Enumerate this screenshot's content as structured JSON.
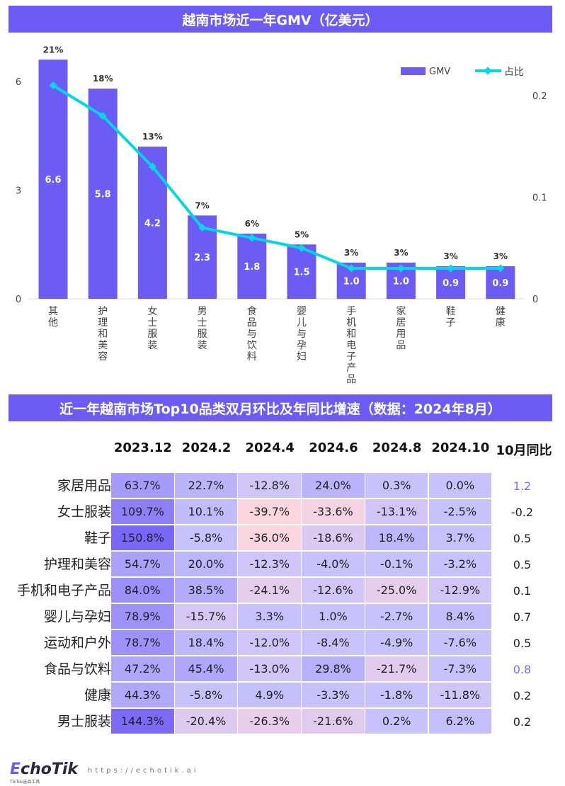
{
  "chart_title": "越南市场近一年GMV（亿美元）",
  "table_title": "近一年越南市场Top10品类双月环比及年同比增速（数据：2024年8月）",
  "chart_data": [
    {
      "type": "bar+line",
      "categories": [
        "其他",
        "护理和美容",
        "女士服装",
        "男士服装",
        "食品与饮料",
        "婴儿与孕妇",
        "手机和电子产品",
        "家居用品",
        "鞋子",
        "健康"
      ],
      "series": [
        {
          "name": "GMV",
          "type": "bar",
          "axis": "left",
          "values": [
            6.6,
            5.8,
            4.2,
            2.3,
            1.8,
            1.5,
            1.0,
            1.0,
            0.9,
            0.9
          ],
          "color": "#6c5cf5"
        },
        {
          "name": "占比",
          "type": "line",
          "axis": "right",
          "values": [
            0.21,
            0.18,
            0.13,
            0.07,
            0.06,
            0.05,
            0.03,
            0.03,
            0.03,
            0.03
          ],
          "labels": [
            "21%",
            "18%",
            "13%",
            "7%",
            "6%",
            "5%",
            "3%",
            "3%",
            "3%",
            "3%"
          ],
          "color": "#00d8e6"
        }
      ],
      "y_left": {
        "ticks": [
          "0",
          "3",
          "6"
        ],
        "lim": [
          0,
          6
        ]
      },
      "y_right": {
        "ticks": [
          "0",
          "0.1",
          "0.2"
        ],
        "lim": [
          0,
          0.2
        ]
      },
      "legend": "top-right",
      "grid": false
    },
    {
      "type": "heatmap",
      "columns": [
        "2023.12",
        "2024.2",
        "2024.4",
        "2024.6",
        "2024.8",
        "2024.10",
        "10月同比"
      ],
      "rows": [
        {
          "label": "家居用品",
          "values": [
            "63.7%",
            "22.7%",
            "-12.8%",
            "24.0%",
            "0.3%",
            "0.0%"
          ],
          "yoy": "1.2",
          "yoy_highlight": true
        },
        {
          "label": "女士服装",
          "values": [
            "109.7%",
            "10.1%",
            "-39.7%",
            "-33.6%",
            "-13.1%",
            "-2.5%"
          ],
          "yoy": "-0.2"
        },
        {
          "label": "鞋子",
          "values": [
            "150.8%",
            "-5.8%",
            "-36.0%",
            "-18.6%",
            "18.4%",
            "3.7%"
          ],
          "yoy": "0.5"
        },
        {
          "label": "护理和美容",
          "values": [
            "54.7%",
            "20.0%",
            "-12.3%",
            "-4.0%",
            "-0.1%",
            "-3.2%"
          ],
          "yoy": "0.5"
        },
        {
          "label": "手机和电子产品",
          "values": [
            "84.0%",
            "38.5%",
            "-24.1%",
            "-12.6%",
            "-25.0%",
            "-12.9%"
          ],
          "yoy": "0.1"
        },
        {
          "label": "婴儿与孕妇",
          "values": [
            "78.9%",
            "-15.7%",
            "3.3%",
            "1.0%",
            "-2.7%",
            "8.4%"
          ],
          "yoy": "0.7"
        },
        {
          "label": "运动和户外",
          "values": [
            "78.7%",
            "18.4%",
            "-12.0%",
            "-8.4%",
            "-4.9%",
            "-7.6%"
          ],
          "yoy": "0.5"
        },
        {
          "label": "食品与饮料",
          "values": [
            "47.2%",
            "45.4%",
            "-13.0%",
            "29.8%",
            "-21.7%",
            "-7.3%"
          ],
          "yoy": "0.8",
          "yoy_highlight": true
        },
        {
          "label": "健康",
          "values": [
            "44.3%",
            "-5.8%",
            "4.9%",
            "-3.3%",
            "-1.8%",
            "-11.8%"
          ],
          "yoy": "0.2"
        },
        {
          "label": "男士服装",
          "values": [
            "144.3%",
            "-20.4%",
            "-26.3%",
            "-21.6%",
            "0.2%",
            "6.2%"
          ],
          "yoy": "0.2"
        }
      ]
    }
  ],
  "footer": {
    "logo": "EchoTik",
    "logo_sub": "TikTok选品工具",
    "url": "https://echotik.ai"
  }
}
